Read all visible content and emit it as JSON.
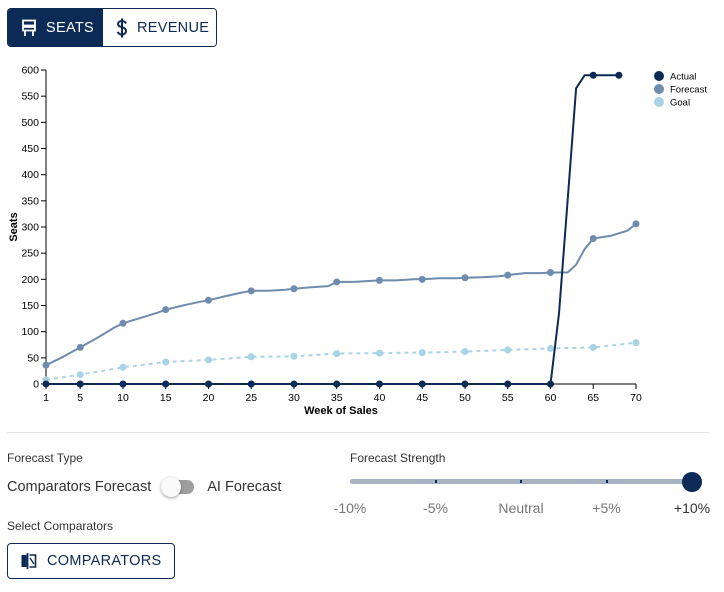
{
  "metric_toggle": {
    "seats_label": "SEATS",
    "revenue_label": "REVENUE",
    "selected": "SEATS"
  },
  "colors": {
    "navy": "#0b2a55",
    "actual": "#0b2a55",
    "forecast": "#6f8bad",
    "goal": "#a8d4e6"
  },
  "chart_data": {
    "type": "line",
    "xlabel": "Week of Sales",
    "ylabel": "Seats",
    "xlim": [
      1,
      70
    ],
    "ylim": [
      0,
      600
    ],
    "x_ticks": [
      1,
      5,
      10,
      15,
      20,
      25,
      30,
      35,
      40,
      45,
      50,
      55,
      60,
      65,
      70
    ],
    "y_ticks": [
      0,
      50,
      100,
      150,
      200,
      250,
      300,
      350,
      400,
      450,
      500,
      550,
      600
    ],
    "legend_position": "top-right",
    "series": [
      {
        "name": "Actual",
        "color": "#0b2a55",
        "style": "solid",
        "line": [
          [
            1,
            0
          ],
          [
            5,
            0
          ],
          [
            10,
            0
          ],
          [
            15,
            0
          ],
          [
            20,
            0
          ],
          [
            25,
            0
          ],
          [
            30,
            0
          ],
          [
            35,
            0
          ],
          [
            40,
            0
          ],
          [
            45,
            0
          ],
          [
            50,
            0
          ],
          [
            55,
            0
          ],
          [
            60,
            0
          ],
          [
            61,
            135
          ],
          [
            62,
            350
          ],
          [
            63,
            565
          ],
          [
            64,
            590
          ],
          [
            65,
            590
          ],
          [
            68,
            590
          ]
        ],
        "markers": [
          [
            1,
            0
          ],
          [
            5,
            0
          ],
          [
            10,
            0
          ],
          [
            15,
            0
          ],
          [
            20,
            0
          ],
          [
            25,
            0
          ],
          [
            30,
            0
          ],
          [
            35,
            0
          ],
          [
            40,
            0
          ],
          [
            45,
            0
          ],
          [
            50,
            0
          ],
          [
            55,
            0
          ],
          [
            60,
            0
          ],
          [
            65,
            590
          ],
          [
            68,
            590
          ]
        ]
      },
      {
        "name": "Forecast",
        "color": "#6f8bad",
        "style": "solid",
        "line": [
          [
            1,
            36
          ],
          [
            3,
            52
          ],
          [
            5,
            70
          ],
          [
            7,
            88
          ],
          [
            9,
            108
          ],
          [
            10,
            116
          ],
          [
            12,
            126
          ],
          [
            14,
            136
          ],
          [
            15,
            142
          ],
          [
            17,
            150
          ],
          [
            19,
            157
          ],
          [
            20,
            160
          ],
          [
            22,
            168
          ],
          [
            24,
            175
          ],
          [
            25,
            178
          ],
          [
            27,
            178
          ],
          [
            29,
            180
          ],
          [
            30,
            182
          ],
          [
            32,
            185
          ],
          [
            34,
            187
          ],
          [
            35,
            195
          ],
          [
            37,
            195
          ],
          [
            39,
            197
          ],
          [
            40,
            198
          ],
          [
            42,
            198
          ],
          [
            44,
            200
          ],
          [
            45,
            200
          ],
          [
            47,
            202
          ],
          [
            49,
            202
          ],
          [
            50,
            203
          ],
          [
            52,
            204
          ],
          [
            54,
            206
          ],
          [
            55,
            208
          ],
          [
            57,
            212
          ],
          [
            59,
            212
          ],
          [
            60,
            213
          ],
          [
            62,
            213
          ],
          [
            63,
            228
          ],
          [
            64,
            258
          ],
          [
            65,
            278
          ],
          [
            67,
            283
          ],
          [
            69,
            293
          ],
          [
            70,
            306
          ]
        ],
        "markers": [
          [
            1,
            36
          ],
          [
            5,
            70
          ],
          [
            10,
            116
          ],
          [
            15,
            142
          ],
          [
            20,
            160
          ],
          [
            25,
            178
          ],
          [
            30,
            182
          ],
          [
            35,
            195
          ],
          [
            40,
            198
          ],
          [
            45,
            200
          ],
          [
            50,
            203
          ],
          [
            55,
            208
          ],
          [
            60,
            213
          ],
          [
            65,
            278
          ],
          [
            70,
            306
          ]
        ]
      },
      {
        "name": "Goal",
        "color": "#a8d4e6",
        "style": "dashed",
        "line": [
          [
            1,
            8
          ],
          [
            5,
            18
          ],
          [
            10,
            32
          ],
          [
            15,
            42
          ],
          [
            20,
            46
          ],
          [
            25,
            52
          ],
          [
            30,
            53
          ],
          [
            35,
            58
          ],
          [
            40,
            59
          ],
          [
            45,
            60
          ],
          [
            50,
            62
          ],
          [
            55,
            65
          ],
          [
            60,
            68
          ],
          [
            65,
            70
          ],
          [
            70,
            79
          ]
        ],
        "markers": [
          [
            1,
            8
          ],
          [
            5,
            18
          ],
          [
            10,
            32
          ],
          [
            15,
            42
          ],
          [
            20,
            46
          ],
          [
            25,
            52
          ],
          [
            30,
            53
          ],
          [
            35,
            58
          ],
          [
            40,
            59
          ],
          [
            45,
            60
          ],
          [
            50,
            62
          ],
          [
            55,
            65
          ],
          [
            60,
            68
          ],
          [
            65,
            70
          ],
          [
            70,
            79
          ]
        ]
      }
    ]
  },
  "controls": {
    "forecast_type_label": "Forecast Type",
    "forecast_left_option": "Comparators Forecast",
    "forecast_right_option": "AI Forecast",
    "ai_forecast_enabled": false,
    "forecast_strength_label": "Forecast Strength",
    "strength_marks": [
      "-10%",
      "-5%",
      "Neutral",
      "+5%",
      "+10%"
    ],
    "strength_value": "+10%",
    "strength_fraction": 1.0,
    "select_comparators_label": "Select Comparators",
    "comparators_button_label": "COMPARATORS"
  }
}
